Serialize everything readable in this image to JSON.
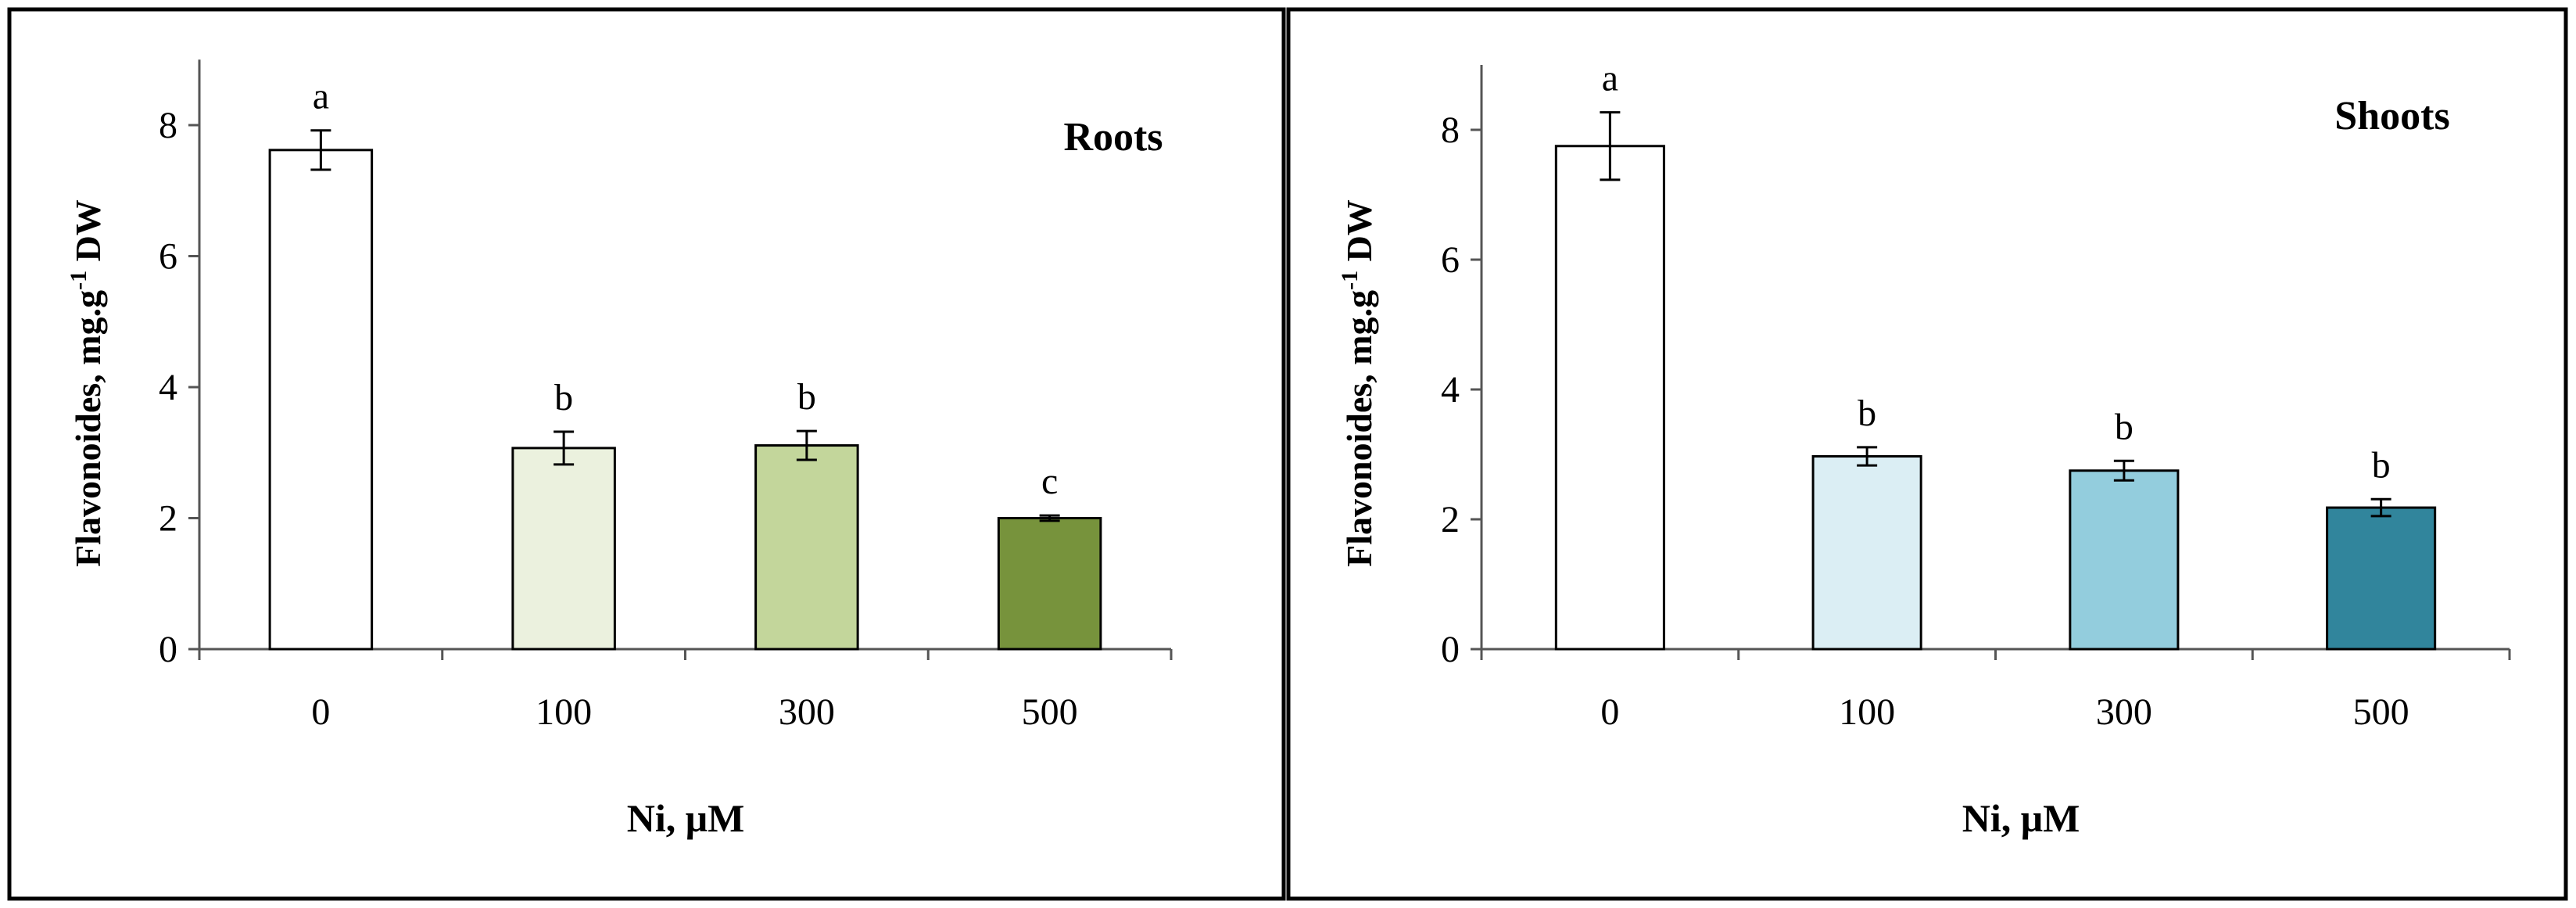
{
  "figure": {
    "background": "#ffffff",
    "frame_color": "#000000"
  },
  "chart_data": [
    {
      "type": "bar",
      "title": "Roots",
      "xlabel": "Ni, μM",
      "ylabel_main": "Flavonoides,  mg.g",
      "ylabel_sup": "-1",
      "ylabel_tail": " DW",
      "categories": [
        "0",
        "100",
        "300",
        "500"
      ],
      "values": [
        7.62,
        3.07,
        3.11,
        2.0
      ],
      "errors": [
        0.3,
        0.25,
        0.22,
        0.04
      ],
      "letters": [
        "a",
        "b",
        "b",
        "c"
      ],
      "colors": [
        "#ffffff",
        "#ebf1de",
        "#c3d69b",
        "#77933c"
      ],
      "ylim": [
        0,
        9
      ],
      "yticks": [
        0,
        2,
        4,
        6,
        8
      ]
    },
    {
      "type": "bar",
      "title": "Shoots",
      "xlabel": "Ni, μM",
      "ylabel_main": "Flavonoides,  mg.g",
      "ylabel_sup": "-1",
      "ylabel_tail": " DW",
      "categories": [
        "0",
        "100",
        "300",
        "500"
      ],
      "values": [
        7.75,
        2.97,
        2.75,
        2.18
      ],
      "errors": [
        0.52,
        0.14,
        0.15,
        0.13
      ],
      "letters": [
        "a",
        "b",
        "b",
        "b"
      ],
      "colors": [
        "#ffffff",
        "#dbeef4",
        "#93cddd",
        "#31859c"
      ],
      "ylim": [
        0,
        9
      ],
      "yticks": [
        0,
        2,
        4,
        6,
        8
      ]
    }
  ]
}
